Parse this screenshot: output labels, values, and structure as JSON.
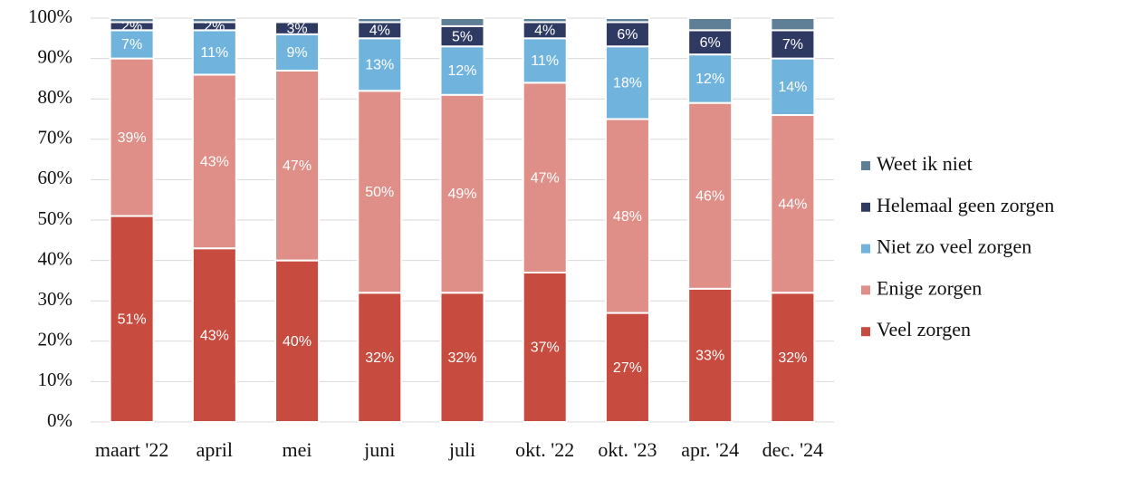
{
  "chart_data": {
    "type": "stacked_bar",
    "categories": [
      "maart '22",
      "april",
      "mei",
      "juni",
      "juli",
      "okt. '22",
      "okt. '23",
      "apr. '24",
      "dec. '24"
    ],
    "series": [
      {
        "name": "Veel zorgen",
        "color": "#c84b3f",
        "values": [
          51,
          43,
          40,
          32,
          32,
          37,
          27,
          33,
          32
        ],
        "value_labels": [
          "51%",
          "43%",
          "40%",
          "32%",
          "32%",
          "37%",
          "27%",
          "33%",
          "32%"
        ]
      },
      {
        "name": "Enige zorgen",
        "color": "#df8f88",
        "values": [
          39,
          43,
          47,
          50,
          49,
          47,
          48,
          46,
          44
        ],
        "value_labels": [
          "39%",
          "43%",
          "47%",
          "50%",
          "49%",
          "47%",
          "48%",
          "46%",
          "44%"
        ]
      },
      {
        "name": "Niet zo veel zorgen",
        "color": "#70b3dc",
        "values": [
          7,
          11,
          9,
          13,
          12,
          11,
          18,
          12,
          14
        ],
        "value_labels": [
          "7%",
          "11%",
          "9%",
          "13%",
          "12%",
          "11%",
          "18%",
          "12%",
          "14%"
        ]
      },
      {
        "name": "Helemaal geen zorgen",
        "color": "#2f3a63",
        "values": [
          2,
          2,
          3,
          4,
          5,
          4,
          6,
          6,
          7
        ],
        "value_labels": [
          "2%",
          "2%",
          "3%",
          "4%",
          "5%",
          "4%",
          "6%",
          "6%",
          "7%"
        ]
      },
      {
        "name": "Weet ik niet",
        "color": "#5f7f96",
        "values": [
          1,
          1,
          0,
          1,
          2,
          1,
          1,
          3,
          3
        ]
      }
    ],
    "ylim": [
      0,
      100
    ],
    "yticks": [
      {
        "value": 0,
        "label": "0%"
      },
      {
        "value": 10,
        "label": "10%"
      },
      {
        "value": 20,
        "label": "20%"
      },
      {
        "value": 30,
        "label": "30%"
      },
      {
        "value": 40,
        "label": "40%"
      },
      {
        "value": 50,
        "label": "50%"
      },
      {
        "value": 60,
        "label": "60%"
      },
      {
        "value": 70,
        "label": "70%"
      },
      {
        "value": 80,
        "label": "80%"
      },
      {
        "value": 90,
        "label": "90%"
      },
      {
        "value": 100,
        "label": "100%"
      }
    ],
    "grid": true,
    "legend": "right"
  }
}
